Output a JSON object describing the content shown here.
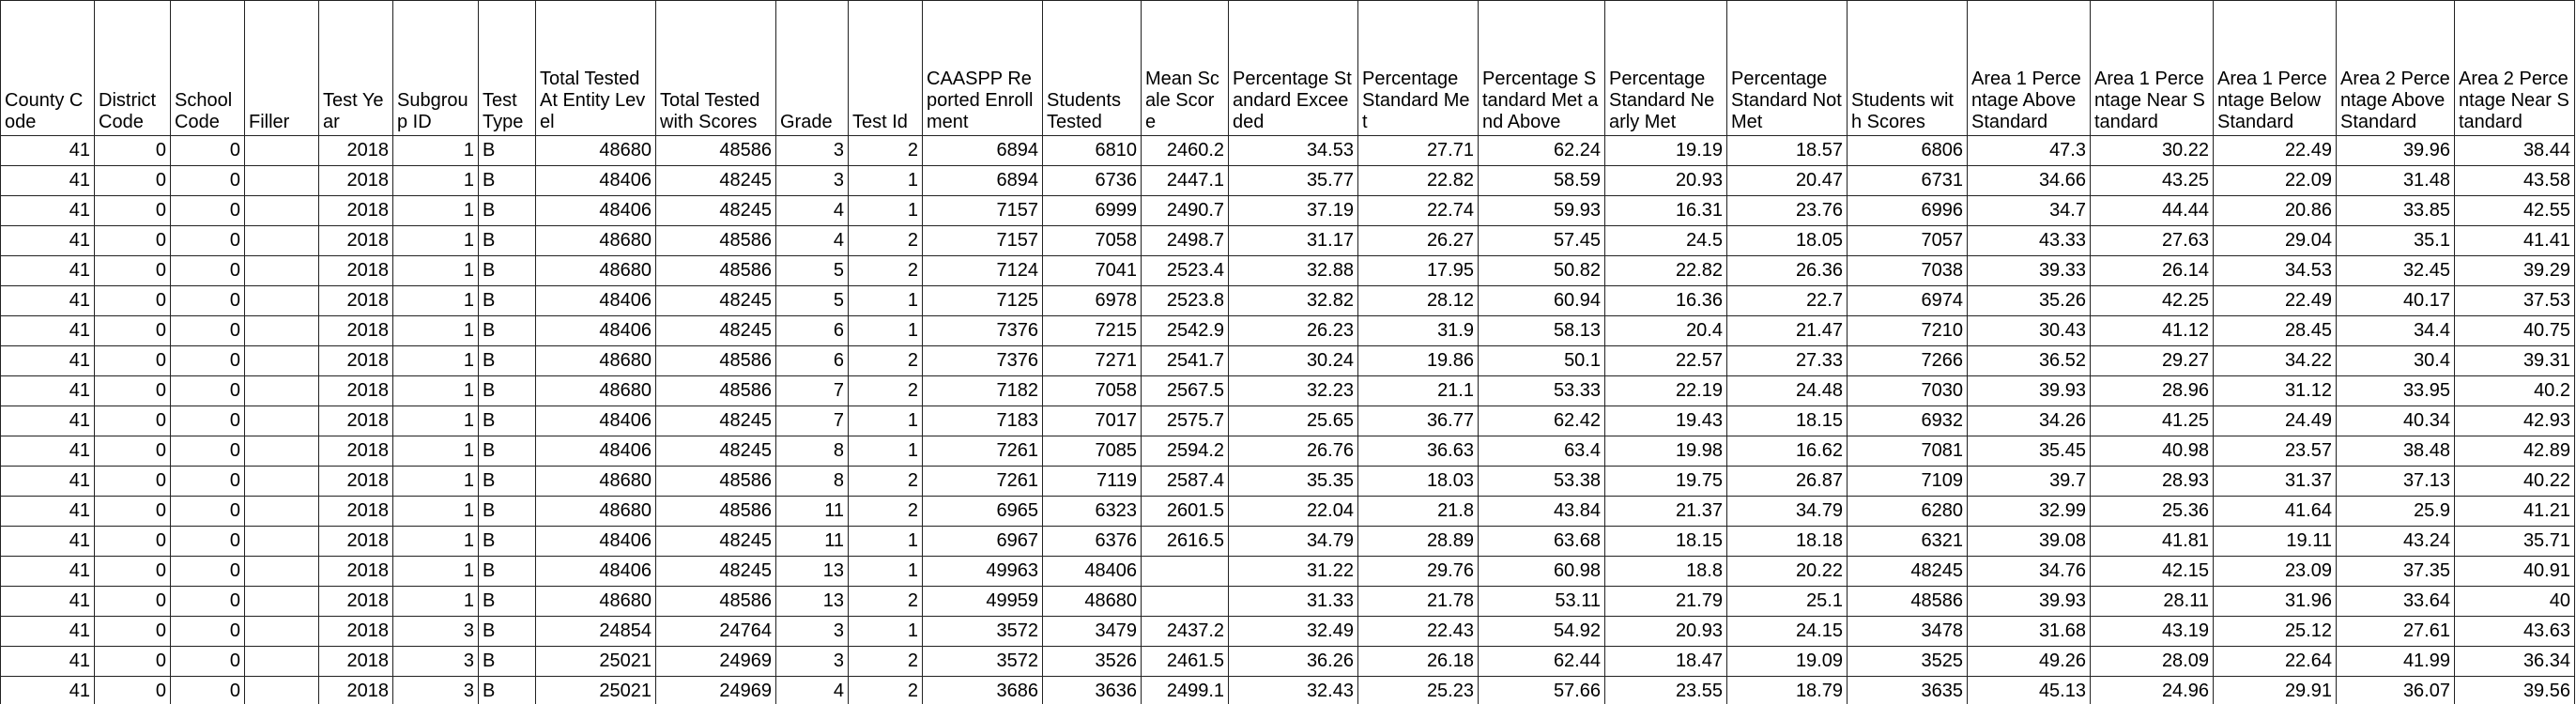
{
  "table": {
    "header": [
      "County Code",
      "District Code",
      "School Code",
      "Filler",
      "Test Year",
      "Subgroup ID",
      "Test Type",
      "Total Tested At Entity Level",
      "Total Tested with Scores",
      "Grade",
      "Test Id",
      "CAASPP Reported Enrollment",
      "Students Tested",
      "Mean Scale Score",
      "Percentage Standard Exceeded",
      "Percentage Standard Met",
      "Percentage Standard Met and Above",
      "Percentage Standard Nearly Met",
      "Percentage Standard Not Met",
      "Students with Scores",
      "Area 1 Percentage Above Standard",
      "Area 1 Percentage Near Standard",
      "Area 1 Percentage Below Standard",
      "Area 2 Percentage Above Standard",
      "Area 2 Percentage Near Standard"
    ],
    "rows": [
      [
        41,
        0,
        0,
        null,
        2018,
        1,
        "B",
        48680,
        48586,
        3,
        2,
        6894,
        6810,
        2460.2,
        34.53,
        27.71,
        62.24,
        19.19,
        18.57,
        6806,
        47.3,
        30.22,
        22.49,
        39.96,
        38.44
      ],
      [
        41,
        0,
        0,
        null,
        2018,
        1,
        "B",
        48406,
        48245,
        3,
        1,
        6894,
        6736,
        2447.1,
        35.77,
        22.82,
        58.59,
        20.93,
        20.47,
        6731,
        34.66,
        43.25,
        22.09,
        31.48,
        43.58
      ],
      [
        41,
        0,
        0,
        null,
        2018,
        1,
        "B",
        48406,
        48245,
        4,
        1,
        7157,
        6999,
        2490.7,
        37.19,
        22.74,
        59.93,
        16.31,
        23.76,
        6996,
        34.7,
        44.44,
        20.86,
        33.85,
        42.55
      ],
      [
        41,
        0,
        0,
        null,
        2018,
        1,
        "B",
        48680,
        48586,
        4,
        2,
        7157,
        7058,
        2498.7,
        31.17,
        26.27,
        57.45,
        24.5,
        18.05,
        7057,
        43.33,
        27.63,
        29.04,
        35.1,
        41.41
      ],
      [
        41,
        0,
        0,
        null,
        2018,
        1,
        "B",
        48680,
        48586,
        5,
        2,
        7124,
        7041,
        2523.4,
        32.88,
        17.95,
        50.82,
        22.82,
        26.36,
        7038,
        39.33,
        26.14,
        34.53,
        32.45,
        39.29
      ],
      [
        41,
        0,
        0,
        null,
        2018,
        1,
        "B",
        48406,
        48245,
        5,
        1,
        7125,
        6978,
        2523.8,
        32.82,
        28.12,
        60.94,
        16.36,
        22.7,
        6974,
        35.26,
        42.25,
        22.49,
        40.17,
        37.53
      ],
      [
        41,
        0,
        0,
        null,
        2018,
        1,
        "B",
        48406,
        48245,
        6,
        1,
        7376,
        7215,
        2542.9,
        26.23,
        31.9,
        58.13,
        20.4,
        21.47,
        7210,
        30.43,
        41.12,
        28.45,
        34.4,
        40.75
      ],
      [
        41,
        0,
        0,
        null,
        2018,
        1,
        "B",
        48680,
        48586,
        6,
        2,
        7376,
        7271,
        2541.7,
        30.24,
        19.86,
        50.1,
        22.57,
        27.33,
        7266,
        36.52,
        29.27,
        34.22,
        30.4,
        39.31
      ],
      [
        41,
        0,
        0,
        null,
        2018,
        1,
        "B",
        48680,
        48586,
        7,
        2,
        7182,
        7058,
        2567.5,
        32.23,
        21.1,
        53.33,
        22.19,
        24.48,
        7030,
        39.93,
        28.96,
        31.12,
        33.95,
        40.2
      ],
      [
        41,
        0,
        0,
        null,
        2018,
        1,
        "B",
        48406,
        48245,
        7,
        1,
        7183,
        7017,
        2575.7,
        25.65,
        36.77,
        62.42,
        19.43,
        18.15,
        6932,
        34.26,
        41.25,
        24.49,
        40.34,
        42.93
      ],
      [
        41,
        0,
        0,
        null,
        2018,
        1,
        "B",
        48406,
        48245,
        8,
        1,
        7261,
        7085,
        2594.2,
        26.76,
        36.63,
        63.4,
        19.98,
        16.62,
        7081,
        35.45,
        40.98,
        23.57,
        38.48,
        42.89
      ],
      [
        41,
        0,
        0,
        null,
        2018,
        1,
        "B",
        48680,
        48586,
        8,
        2,
        7261,
        7119,
        2587.4,
        35.35,
        18.03,
        53.38,
        19.75,
        26.87,
        7109,
        39.7,
        28.93,
        31.37,
        37.13,
        40.22
      ],
      [
        41,
        0,
        0,
        null,
        2018,
        1,
        "B",
        48680,
        48586,
        11,
        2,
        6965,
        6323,
        2601.5,
        22.04,
        21.8,
        43.84,
        21.37,
        34.79,
        6280,
        32.99,
        25.36,
        41.64,
        25.9,
        41.21
      ],
      [
        41,
        0,
        0,
        null,
        2018,
        1,
        "B",
        48406,
        48245,
        11,
        1,
        6967,
        6376,
        2616.5,
        34.79,
        28.89,
        63.68,
        18.15,
        18.18,
        6321,
        39.08,
        41.81,
        19.11,
        43.24,
        35.71
      ],
      [
        41,
        0,
        0,
        null,
        2018,
        1,
        "B",
        48406,
        48245,
        13,
        1,
        49963,
        48406,
        null,
        31.22,
        29.76,
        60.98,
        18.8,
        20.22,
        48245,
        34.76,
        42.15,
        23.09,
        37.35,
        40.91
      ],
      [
        41,
        0,
        0,
        null,
        2018,
        1,
        "B",
        48680,
        48586,
        13,
        2,
        49959,
        48680,
        null,
        31.33,
        21.78,
        53.11,
        21.79,
        25.1,
        48586,
        39.93,
        28.11,
        31.96,
        33.64,
        40
      ],
      [
        41,
        0,
        0,
        null,
        2018,
        3,
        "B",
        24854,
        24764,
        3,
        1,
        3572,
        3479,
        2437.2,
        32.49,
        22.43,
        54.92,
        20.93,
        24.15,
        3478,
        31.68,
        43.19,
        25.12,
        27.61,
        43.63
      ],
      [
        41,
        0,
        0,
        null,
        2018,
        3,
        "B",
        25021,
        24969,
        3,
        2,
        3572,
        3526,
        2461.5,
        36.26,
        26.18,
        62.44,
        18.47,
        19.09,
        3525,
        49.26,
        28.09,
        22.64,
        41.99,
        36.34
      ],
      [
        41,
        0,
        0,
        null,
        2018,
        3,
        "B",
        25021,
        24969,
        4,
        2,
        3686,
        3636,
        2499.1,
        32.43,
        25.23,
        57.66,
        23.55,
        18.79,
        3635,
        45.13,
        24.96,
        29.91,
        36.07,
        39.56
      ]
    ]
  }
}
